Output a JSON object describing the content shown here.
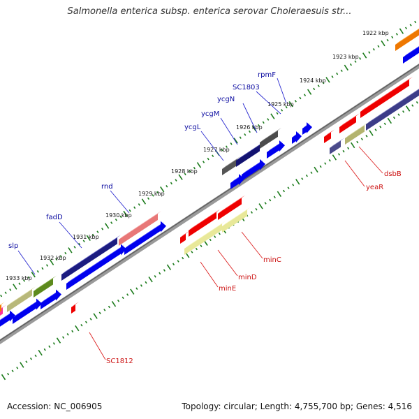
{
  "title": "Salmonella enterica subsp. enterica serovar Choleraesuis str...",
  "footer": {
    "accession": "Accession: NC_006905",
    "summary": "Topology: circular; Length: 4,755,700 bp; Genes: 4,516"
  },
  "colors": {
    "forward_label": "#0a0aa0",
    "reverse_label": "#cc1111",
    "tick": "#1a7a1a",
    "backbone": "#8c8c8c"
  },
  "ticks": [
    {
      "label": "1922 kbp"
    },
    {
      "label": "1923 kbp"
    },
    {
      "label": "1924 kbp"
    },
    {
      "label": "1925 kbp"
    },
    {
      "label": "1926 kbp"
    },
    {
      "label": "1927 kbp"
    },
    {
      "label": "1928 kbp"
    },
    {
      "label": "1929 kbp"
    },
    {
      "label": "1930 kbp"
    },
    {
      "label": "1931 kbp"
    },
    {
      "label": "1932 kbp"
    },
    {
      "label": "1933 kbp"
    }
  ],
  "forward_labels": [
    "rpmF",
    "SC1803",
    "ycgN",
    "ycgM",
    "ycgL",
    "rnd",
    "fadD",
    "slp"
  ],
  "reverse_labels": [
    "dsbB",
    "yeaR",
    "minC",
    "minD",
    "minE",
    "SC1812"
  ]
}
